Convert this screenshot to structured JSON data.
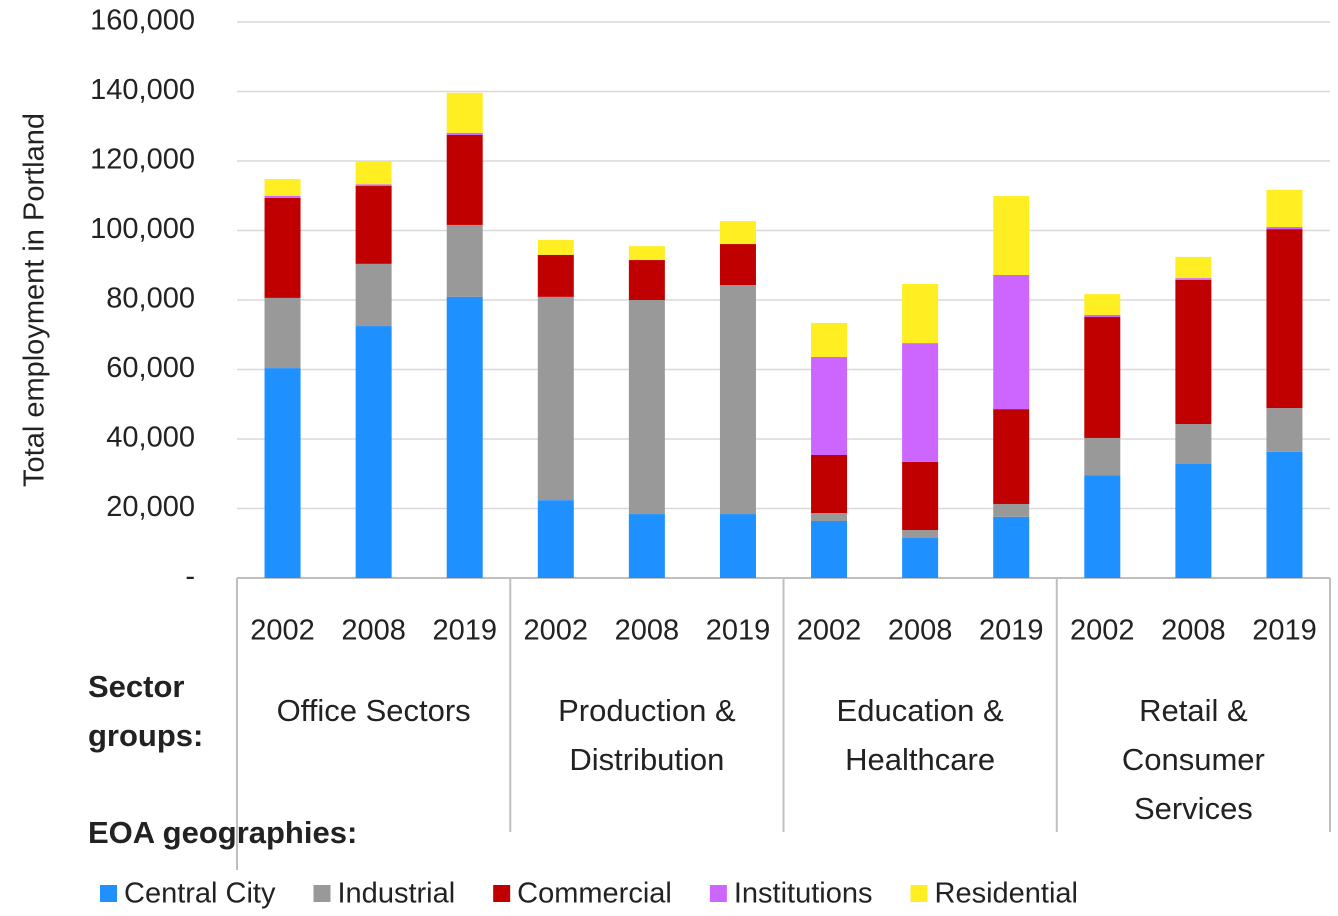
{
  "chart_data": {
    "type": "bar",
    "stacked": true,
    "y_label": "Total employment in Portland",
    "group_label": "Sector groups:",
    "legend_title": "EOA geographies:",
    "groups": [
      {
        "name": "Office Sectors",
        "categories": [
          "2002",
          "2008",
          "2019"
        ]
      },
      {
        "name": "Production & Distribution",
        "categories": [
          "2002",
          "2008",
          "2019"
        ]
      },
      {
        "name": "Education & Healthcare",
        "categories": [
          "2002",
          "2008",
          "2019"
        ]
      },
      {
        "name": "Retail & Consumer Services",
        "categories": [
          "2002",
          "2008",
          "2019"
        ]
      }
    ],
    "series": [
      {
        "name": "Central City",
        "color": "#1e90ff",
        "values": [
          60400,
          72500,
          80900,
          22400,
          18400,
          18400,
          16400,
          11500,
          17600,
          29600,
          32800,
          36300
        ]
      },
      {
        "name": "Industrial",
        "color": "#999999",
        "values": [
          20200,
          17900,
          20700,
          58500,
          61600,
          65900,
          2300,
          2300,
          3700,
          10700,
          11500,
          12600
        ]
      },
      {
        "name": "Commercial",
        "color": "#c00000",
        "values": [
          28800,
          22400,
          25900,
          12100,
          11500,
          11800,
          16700,
          19600,
          27300,
          34800,
          41500,
          51500
        ]
      },
      {
        "name": "Institutions",
        "color": "#cc66ff",
        "values": [
          600,
          500,
          600,
          0,
          0,
          0,
          28200,
          34200,
          38600,
          600,
          500,
          600
        ]
      },
      {
        "name": "Residential",
        "color": "#ffee22",
        "values": [
          4800,
          6600,
          11500,
          4300,
          4000,
          6600,
          9800,
          17000,
          22700,
          6000,
          6100,
          10700
        ]
      }
    ],
    "ylim": [
      0,
      160000
    ],
    "yticks": [
      {
        "value": 0,
        "label": "-"
      },
      {
        "value": 20000,
        "label": "20,000"
      },
      {
        "value": 40000,
        "label": "40,000"
      },
      {
        "value": 60000,
        "label": "60,000"
      },
      {
        "value": 80000,
        "label": "80,000"
      },
      {
        "value": 100000,
        "label": "100,000"
      },
      {
        "value": 120000,
        "label": "120,000"
      },
      {
        "value": 140000,
        "label": "140,000"
      },
      {
        "value": 160000,
        "label": "160,000"
      }
    ],
    "grid": true
  }
}
